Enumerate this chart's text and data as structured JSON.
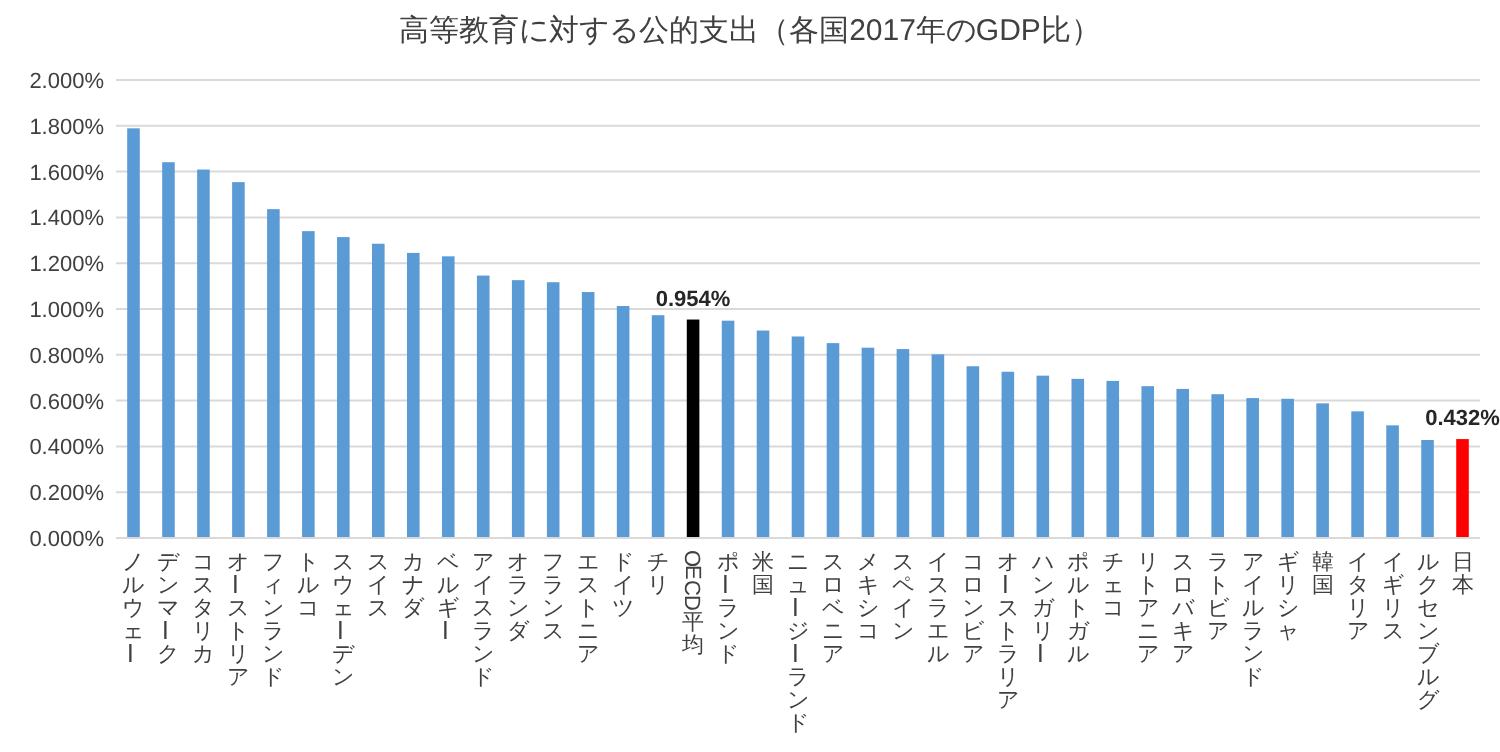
{
  "chart_data": {
    "type": "bar",
    "title": "高等教育に対する公的支出（各国2017年のGDP比）",
    "categories": [
      "ノルウェー",
      "デンマーク",
      "コスタリカ",
      "オーストリア",
      "フィンランド",
      "トルコ",
      "スウェーデン",
      "スイス",
      "カナダ",
      "ベルギー",
      "アイスランド",
      "オランダ",
      "フランス",
      "エストニア",
      "ドイツ",
      "チリ",
      "OECD平均",
      "ポーランド",
      "米国",
      "ニュージーランド",
      "スロベニア",
      "メキシコ",
      "スペイン",
      "イスラエル",
      "コロンビア",
      "オーストラリア",
      "ハンガリー",
      "ポルトガル",
      "チェコ",
      "リトアニア",
      "スロバキア",
      "ラトビア",
      "アイルランド",
      "ギリシャ",
      "韓国",
      "イタリア",
      "イギリス",
      "ルクセンブルグ",
      "日本"
    ],
    "values": [
      1.789,
      1.641,
      1.609,
      1.554,
      1.436,
      1.34,
      1.314,
      1.285,
      1.245,
      1.23,
      1.146,
      1.126,
      1.117,
      1.074,
      1.013,
      0.973,
      0.954,
      0.949,
      0.906,
      0.88,
      0.851,
      0.831,
      0.825,
      0.802,
      0.75,
      0.726,
      0.709,
      0.695,
      0.686,
      0.663,
      0.651,
      0.628,
      0.611,
      0.608,
      0.588,
      0.553,
      0.492,
      0.428,
      0.432
    ],
    "colors": [
      "#5b9bd5",
      "#5b9bd5",
      "#5b9bd5",
      "#5b9bd5",
      "#5b9bd5",
      "#5b9bd5",
      "#5b9bd5",
      "#5b9bd5",
      "#5b9bd5",
      "#5b9bd5",
      "#5b9bd5",
      "#5b9bd5",
      "#5b9bd5",
      "#5b9bd5",
      "#5b9bd5",
      "#5b9bd5",
      "#000000",
      "#5b9bd5",
      "#5b9bd5",
      "#5b9bd5",
      "#5b9bd5",
      "#5b9bd5",
      "#5b9bd5",
      "#5b9bd5",
      "#5b9bd5",
      "#5b9bd5",
      "#5b9bd5",
      "#5b9bd5",
      "#5b9bd5",
      "#5b9bd5",
      "#5b9bd5",
      "#5b9bd5",
      "#5b9bd5",
      "#5b9bd5",
      "#5b9bd5",
      "#5b9bd5",
      "#5b9bd5",
      "#5b9bd5",
      "#ff0000"
    ],
    "value_labels": [
      null,
      null,
      null,
      null,
      null,
      null,
      null,
      null,
      null,
      null,
      null,
      null,
      null,
      null,
      null,
      null,
      "0.954%",
      null,
      null,
      null,
      null,
      null,
      null,
      null,
      null,
      null,
      null,
      null,
      null,
      null,
      null,
      null,
      null,
      null,
      null,
      null,
      null,
      null,
      "0.432%"
    ],
    "ylim": [
      0,
      2
    ],
    "yticks": [
      {
        "value": 0,
        "label": "0.000%"
      },
      {
        "value": 0.2,
        "label": "0.200%"
      },
      {
        "value": 0.4,
        "label": "0.400%"
      },
      {
        "value": 0.6,
        "label": "0.600%"
      },
      {
        "value": 0.8,
        "label": "0.800%"
      },
      {
        "value": 1.0,
        "label": "1.000%"
      },
      {
        "value": 1.2,
        "label": "1.200%"
      },
      {
        "value": 1.4,
        "label": "1.400%"
      },
      {
        "value": 1.6,
        "label": "1.600%"
      },
      {
        "value": 1.8,
        "label": "1.800%"
      },
      {
        "value": 2.0,
        "label": "2.000%"
      }
    ],
    "grid": "y",
    "legend": false
  }
}
